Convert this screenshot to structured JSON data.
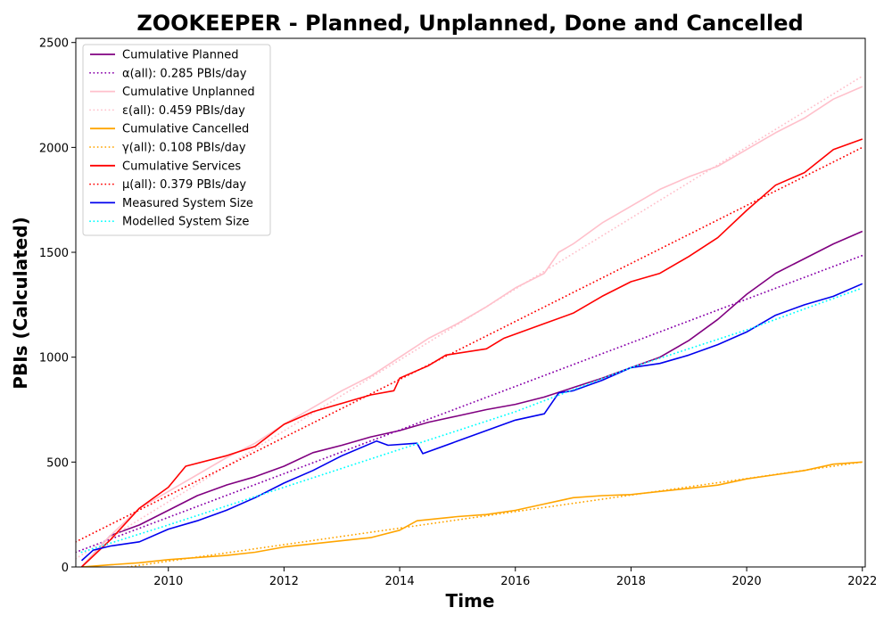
{
  "chart_data": {
    "type": "line",
    "title": "ZOOKEEPER - Planned, Unplanned, Done  and Cancelled",
    "xlabel": "Time",
    "ylabel": "PBIs (Calculated)",
    "xlim": [
      2008.4,
      2022.05
    ],
    "ylim": [
      0,
      2520
    ],
    "x_ticks": [
      "2010",
      "2012",
      "2014",
      "2016",
      "2018",
      "2020",
      "2022"
    ],
    "y_ticks": [
      "0",
      "500",
      "1000",
      "1500",
      "2000",
      "2500"
    ],
    "legend_position": "top-left",
    "grid": false,
    "series": [
      {
        "name": "Cumulative Planned",
        "color": "#800080",
        "style": "solid",
        "points": [
          [
            2008.5,
            0
          ],
          [
            2009.0,
            150
          ],
          [
            2009.5,
            200
          ],
          [
            2010.0,
            270
          ],
          [
            2010.5,
            340
          ],
          [
            2011.0,
            390
          ],
          [
            2011.5,
            430
          ],
          [
            2012.0,
            480
          ],
          [
            2012.5,
            545
          ],
          [
            2013.0,
            580
          ],
          [
            2013.5,
            620
          ],
          [
            2014.0,
            650
          ],
          [
            2014.5,
            690
          ],
          [
            2015.0,
            720
          ],
          [
            2015.5,
            750
          ],
          [
            2016.0,
            775
          ],
          [
            2016.5,
            810
          ],
          [
            2017.0,
            855
          ],
          [
            2017.5,
            900
          ],
          [
            2018.0,
            950
          ],
          [
            2018.5,
            1000
          ],
          [
            2019.0,
            1080
          ],
          [
            2019.5,
            1180
          ],
          [
            2020.0,
            1300
          ],
          [
            2020.5,
            1400
          ],
          [
            2021.0,
            1470
          ],
          [
            2021.5,
            1540
          ],
          [
            2022.0,
            1600
          ]
        ]
      },
      {
        "name": "α(all): 0.285 PBIs/day",
        "color": "#8800aa",
        "style": "dotted",
        "points": [
          [
            2008.4,
            70
          ],
          [
            2022.0,
            1485
          ]
        ]
      },
      {
        "name": "Cumulative Unplanned",
        "color": "#ffc0cb",
        "style": "solid",
        "points": [
          [
            2008.5,
            0
          ],
          [
            2009.0,
            150
          ],
          [
            2009.5,
            280
          ],
          [
            2010.0,
            360
          ],
          [
            2010.5,
            440
          ],
          [
            2011.0,
            520
          ],
          [
            2011.5,
            590
          ],
          [
            2012.0,
            680
          ],
          [
            2012.5,
            760
          ],
          [
            2013.0,
            840
          ],
          [
            2013.5,
            910
          ],
          [
            2014.0,
            1000
          ],
          [
            2014.5,
            1090
          ],
          [
            2015.0,
            1160
          ],
          [
            2015.5,
            1240
          ],
          [
            2016.0,
            1330
          ],
          [
            2016.5,
            1400
          ],
          [
            2016.75,
            1500
          ],
          [
            2017.0,
            1540
          ],
          [
            2017.5,
            1640
          ],
          [
            2018.0,
            1720
          ],
          [
            2018.5,
            1800
          ],
          [
            2019.0,
            1860
          ],
          [
            2019.5,
            1910
          ],
          [
            2020.0,
            1990
          ],
          [
            2020.5,
            2070
          ],
          [
            2021.0,
            2140
          ],
          [
            2021.5,
            2230
          ],
          [
            2022.0,
            2290
          ]
        ]
      },
      {
        "name": "ε(all): 0.459 PBIs/day",
        "color": "#ffc0cb",
        "style": "dotted",
        "points": [
          [
            2008.4,
            40
          ],
          [
            2022.0,
            2340
          ]
        ]
      },
      {
        "name": "Cumulative Cancelled",
        "color": "#ffa500",
        "style": "solid",
        "points": [
          [
            2008.5,
            0
          ],
          [
            2009.0,
            10
          ],
          [
            2009.5,
            20
          ],
          [
            2010.0,
            35
          ],
          [
            2010.5,
            45
          ],
          [
            2011.0,
            55
          ],
          [
            2011.5,
            70
          ],
          [
            2012.0,
            95
          ],
          [
            2012.5,
            110
          ],
          [
            2013.0,
            125
          ],
          [
            2013.5,
            140
          ],
          [
            2014.0,
            175
          ],
          [
            2014.3,
            220
          ],
          [
            2015.0,
            240
          ],
          [
            2015.5,
            250
          ],
          [
            2016.0,
            270
          ],
          [
            2016.5,
            300
          ],
          [
            2017.0,
            330
          ],
          [
            2017.5,
            340
          ],
          [
            2018.0,
            345
          ],
          [
            2018.5,
            360
          ],
          [
            2019.0,
            375
          ],
          [
            2019.5,
            390
          ],
          [
            2020.0,
            420
          ],
          [
            2020.5,
            440
          ],
          [
            2021.0,
            460
          ],
          [
            2021.5,
            490
          ],
          [
            2022.0,
            500
          ]
        ]
      },
      {
        "name": "γ(all): 0.108 PBIs/day",
        "color": "#ffa500",
        "style": "dotted",
        "points": [
          [
            2009.3,
            0
          ],
          [
            2022.0,
            500
          ]
        ]
      },
      {
        "name": "Cumulative Services",
        "color": "#ff0000",
        "style": "solid",
        "points": [
          [
            2008.5,
            0
          ],
          [
            2009.0,
            130
          ],
          [
            2009.5,
            280
          ],
          [
            2010.0,
            380
          ],
          [
            2010.3,
            480
          ],
          [
            2011.0,
            530
          ],
          [
            2011.5,
            575
          ],
          [
            2012.0,
            680
          ],
          [
            2012.5,
            740
          ],
          [
            2013.0,
            780
          ],
          [
            2013.5,
            820
          ],
          [
            2013.9,
            840
          ],
          [
            2014.0,
            900
          ],
          [
            2014.5,
            960
          ],
          [
            2014.8,
            1010
          ],
          [
            2015.5,
            1040
          ],
          [
            2015.8,
            1090
          ],
          [
            2016.5,
            1160
          ],
          [
            2017.0,
            1210
          ],
          [
            2017.5,
            1290
          ],
          [
            2018.0,
            1360
          ],
          [
            2018.5,
            1400
          ],
          [
            2019.0,
            1480
          ],
          [
            2019.5,
            1570
          ],
          [
            2020.0,
            1700
          ],
          [
            2020.5,
            1820
          ],
          [
            2021.0,
            1880
          ],
          [
            2021.5,
            1990
          ],
          [
            2022.0,
            2040
          ]
        ]
      },
      {
        "name": "μ(all): 0.379 PBIs/day",
        "color": "#ff0000",
        "style": "dotted",
        "points": [
          [
            2008.4,
            120
          ],
          [
            2022.0,
            2000
          ]
        ]
      },
      {
        "name": "Measured System Size",
        "color": "#0000ee",
        "style": "solid",
        "points": [
          [
            2008.5,
            30
          ],
          [
            2008.7,
            80
          ],
          [
            2009.0,
            100
          ],
          [
            2009.5,
            120
          ],
          [
            2010.0,
            180
          ],
          [
            2010.5,
            220
          ],
          [
            2011.0,
            270
          ],
          [
            2011.5,
            330
          ],
          [
            2012.0,
            400
          ],
          [
            2012.5,
            460
          ],
          [
            2013.0,
            530
          ],
          [
            2013.6,
            600
          ],
          [
            2013.8,
            580
          ],
          [
            2014.3,
            590
          ],
          [
            2014.4,
            540
          ],
          [
            2015.0,
            600
          ],
          [
            2015.5,
            650
          ],
          [
            2016.0,
            700
          ],
          [
            2016.5,
            730
          ],
          [
            2016.75,
            830
          ],
          [
            2017.0,
            840
          ],
          [
            2017.5,
            890
          ],
          [
            2018.0,
            950
          ],
          [
            2018.5,
            970
          ],
          [
            2019.0,
            1010
          ],
          [
            2019.5,
            1060
          ],
          [
            2020.0,
            1120
          ],
          [
            2020.5,
            1200
          ],
          [
            2021.0,
            1250
          ],
          [
            2021.5,
            1290
          ],
          [
            2022.0,
            1350
          ]
        ]
      },
      {
        "name": "Modelled System Size",
        "color": "#00ffff",
        "style": "dotted",
        "points": [
          [
            2008.5,
            70
          ],
          [
            2010.0,
            200
          ],
          [
            2012.0,
            380
          ],
          [
            2014.0,
            560
          ],
          [
            2016.0,
            740
          ],
          [
            2018.0,
            950
          ],
          [
            2020.0,
            1130
          ],
          [
            2022.0,
            1330
          ]
        ]
      }
    ]
  }
}
